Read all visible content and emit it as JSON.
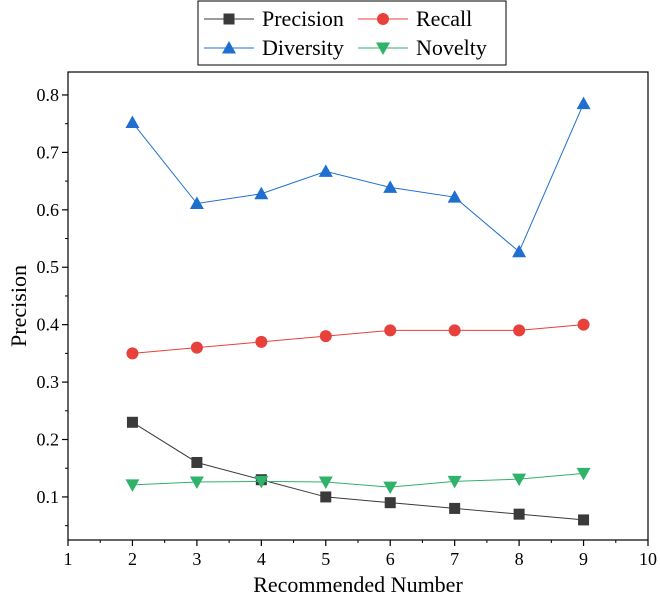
{
  "chart_data": {
    "type": "line",
    "title": "",
    "xlabel": "Recommended Number",
    "ylabel": "Precision",
    "xlim": [
      1,
      10
    ],
    "ylim": [
      0.025,
      0.84
    ],
    "x_ticks": [
      1,
      2,
      3,
      4,
      5,
      6,
      7,
      8,
      9,
      10
    ],
    "y_ticks": [
      0.1,
      0.2,
      0.3,
      0.4,
      0.5,
      0.6,
      0.7,
      0.8
    ],
    "grid": false,
    "legend_position": "top-center",
    "x": [
      2,
      3,
      4,
      5,
      6,
      7,
      8,
      9
    ],
    "series": [
      {
        "name": "Precision",
        "values": [
          0.23,
          0.16,
          0.13,
          0.1,
          0.09,
          0.08,
          0.07,
          0.06
        ],
        "color": "#3a3a3a",
        "marker": "square"
      },
      {
        "name": "Recall",
        "values": [
          0.35,
          0.36,
          0.37,
          0.38,
          0.39,
          0.39,
          0.39,
          0.4
        ],
        "color": "#e8403a",
        "marker": "circle"
      },
      {
        "name": "Diversity",
        "values": [
          0.752,
          0.611,
          0.628,
          0.667,
          0.639,
          0.622,
          0.527,
          0.785
        ],
        "color": "#1f6fd1",
        "marker": "triangle-up"
      },
      {
        "name": "Novelty",
        "values": [
          0.121,
          0.126,
          0.127,
          0.126,
          0.117,
          0.127,
          0.131,
          0.141
        ],
        "color": "#2fb36b",
        "marker": "triangle-down"
      }
    ]
  }
}
